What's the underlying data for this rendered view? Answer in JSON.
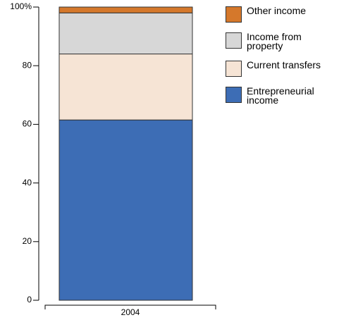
{
  "chart_data": {
    "type": "stacked-bar",
    "categories": [
      "2004"
    ],
    "series": [
      {
        "name": "Entrepreneurial income",
        "color": "#3d6db5",
        "values": [
          61.5
        ]
      },
      {
        "name": "Current transfers",
        "color": "#f6e4d5",
        "values": [
          22.5
        ]
      },
      {
        "name": "Income from property",
        "color": "#d7d7d7",
        "values": [
          14
        ]
      },
      {
        "name": "Other income",
        "color": "#d5782b",
        "values": [
          2
        ]
      }
    ],
    "ylim": [
      0,
      100
    ],
    "yticks": [
      0,
      20,
      40,
      60,
      80,
      {
        "value": 100,
        "label": "100%"
      }
    ],
    "legend": "right"
  }
}
